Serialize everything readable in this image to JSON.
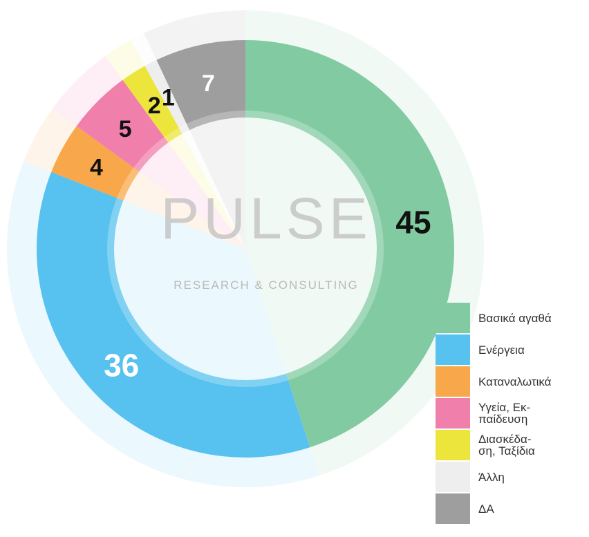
{
  "chart_data": {
    "type": "donut",
    "categories": [
      "Βασικά αγαθά",
      "Ενέργεια",
      "Καταναλωτικά",
      "Υγεία, Εκ-\nπαίδευση",
      "Διασκέδα-\nση, Ταξίδια",
      "Άλλη",
      "ΔΑ"
    ],
    "values": [
      45,
      36,
      4,
      5,
      2,
      1,
      7
    ],
    "colors": [
      "#82cba2",
      "#57c2ef",
      "#f8a84a",
      "#f17fab",
      "#ece53c",
      "#eeeeee",
      "#9e9e9e"
    ],
    "label_colors": [
      "#111111",
      "#ffffff",
      "#111111",
      "#111111",
      "#111111",
      "#111111",
      "#ffffff"
    ],
    "watermark": {
      "title": "PULSE",
      "subtitle": "RESEARCH & CONSULTING"
    }
  }
}
